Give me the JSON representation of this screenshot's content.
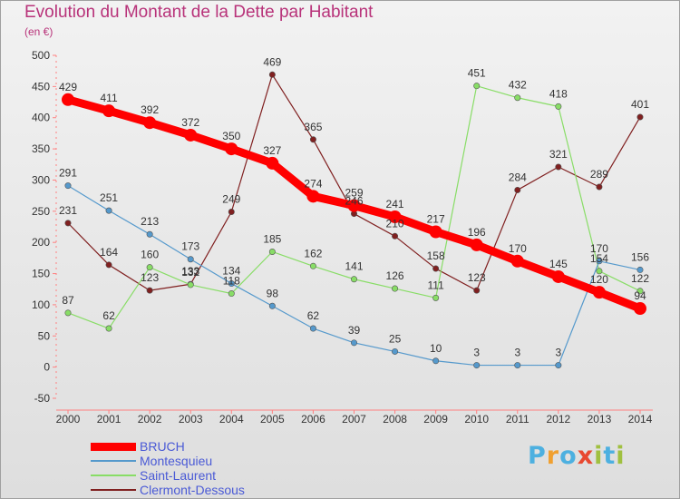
{
  "title": "Evolution du Montant de la Dette par Habitant",
  "subtitle": "(en €)",
  "logo": {
    "text": "Proxiti",
    "colors": [
      "#4db0e0",
      "#f0a030",
      "#4db0e0",
      "#e84830",
      "#a0c040",
      "#4db0e0",
      "#a0c040"
    ]
  },
  "chart_data": {
    "type": "line",
    "x": [
      "2000",
      "2001",
      "2002",
      "2003",
      "2004",
      "2005",
      "2006",
      "2007",
      "2008",
      "2009",
      "2010",
      "2011",
      "2012",
      "2013",
      "2014"
    ],
    "ylim": [
      -50,
      500
    ],
    "yticks": [
      -50,
      0,
      50,
      100,
      150,
      200,
      250,
      300,
      350,
      400,
      450,
      500
    ],
    "grid": false,
    "legend": "bottom-left",
    "series": [
      {
        "name": "BRUCH",
        "color": "#ff0000",
        "values": [
          429,
          411,
          392,
          372,
          350,
          327,
          274,
          259,
          241,
          217,
          196,
          170,
          145,
          120,
          94
        ]
      },
      {
        "name": "Montesquieu",
        "color": "#5599cc",
        "values": [
          291,
          251,
          213,
          173,
          134,
          98,
          62,
          39,
          25,
          10,
          3,
          3,
          3,
          170,
          156
        ]
      },
      {
        "name": "Saint-Laurent",
        "color": "#88dd66",
        "values": [
          87,
          62,
          160,
          132,
          118,
          185,
          162,
          141,
          126,
          111,
          451,
          432,
          418,
          154,
          122
        ]
      },
      {
        "name": "Clermont-Dessous",
        "color": "#802020",
        "values": [
          231,
          164,
          123,
          133,
          249,
          469,
          365,
          246,
          210,
          158,
          123,
          284,
          321,
          289,
          401
        ]
      }
    ]
  }
}
